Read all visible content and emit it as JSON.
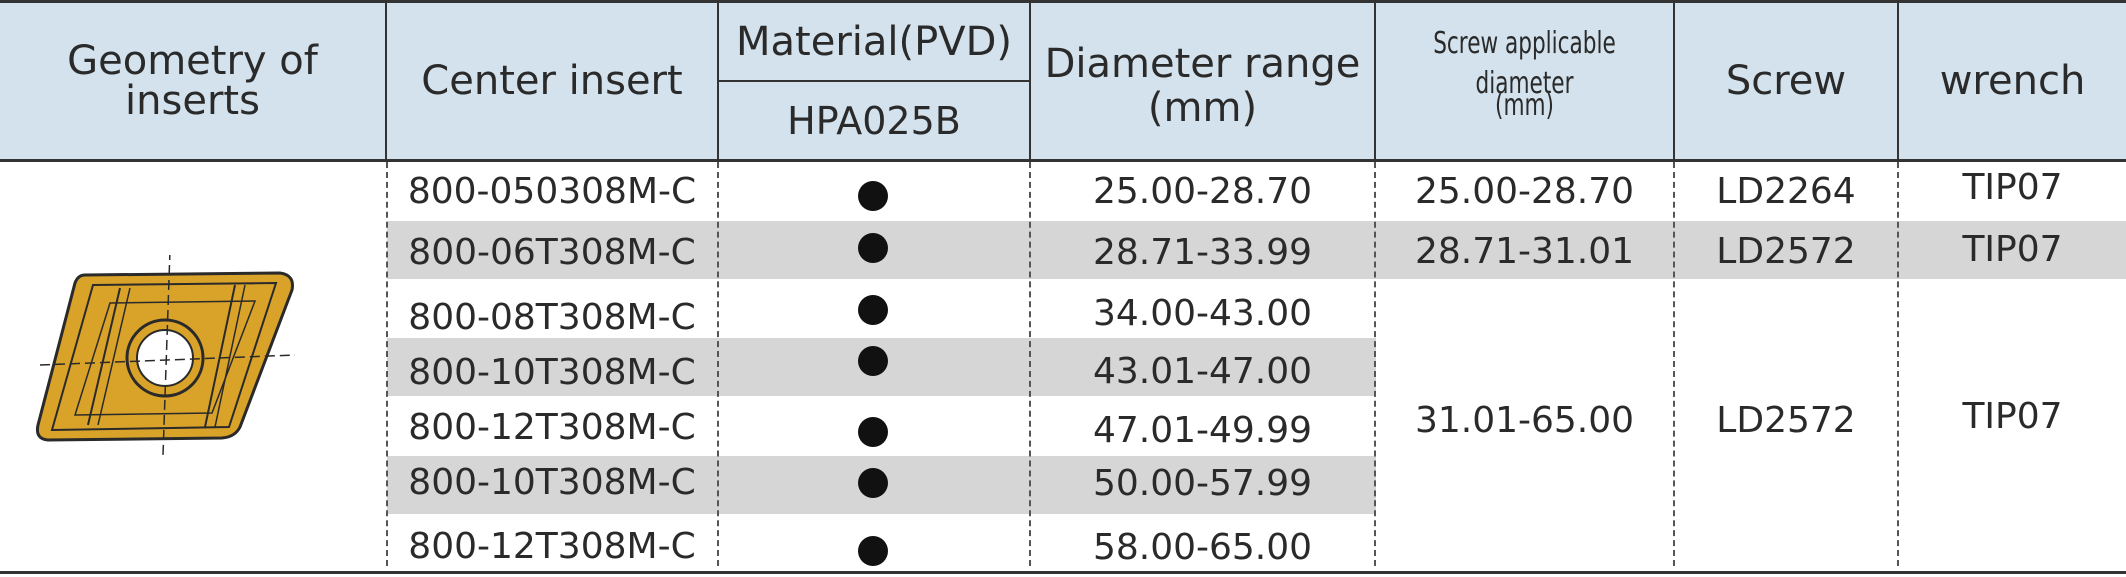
{
  "header": {
    "geometry": "Geometry of inserts",
    "center_insert": "Center insert",
    "material": "Material(PVD)",
    "grade": "HPA025B",
    "diameter_range": "Diameter range",
    "diameter_unit": "(mm)",
    "screw_diameter": "Screw applicable diameter",
    "screw_diameter_unit": "(mm)",
    "screw": "Screw",
    "wrench": "wrench"
  },
  "rows": [
    {
      "insert": "800-050308M-C",
      "material": "●",
      "diameter": "25.00-28.70"
    },
    {
      "insert": "800-06T308M-C",
      "material": "●",
      "diameter": "28.71-33.99"
    },
    {
      "insert": "800-08T308M-C",
      "material": "●",
      "diameter": "34.00-43.00"
    },
    {
      "insert": "800-10T308M-C",
      "material": "●",
      "diameter": "43.01-47.00"
    },
    {
      "insert": "800-12T308M-C",
      "material": "●",
      "diameter": "47.01-49.99"
    },
    {
      "insert": "800-10T308M-C",
      "material": "●",
      "diameter": "50.00-57.99"
    },
    {
      "insert": "800-12T308M-C",
      "material": "●",
      "diameter": "58.00-65.00"
    }
  ],
  "screw_groups": [
    {
      "screw_diameter": "25.00-28.70",
      "screw": "LD2264",
      "wrench": "TIP07"
    },
    {
      "screw_diameter": "28.71-31.01",
      "screw": "LD2572",
      "wrench": "TIP07"
    },
    {
      "screw_diameter": "31.01-65.00",
      "screw": "LD2572",
      "wrench": "TIP07"
    }
  ],
  "colors": {
    "header_bg": "#d3e2ec",
    "stripe": "#d6d6d6",
    "insert_gold": "#d9a32a"
  }
}
